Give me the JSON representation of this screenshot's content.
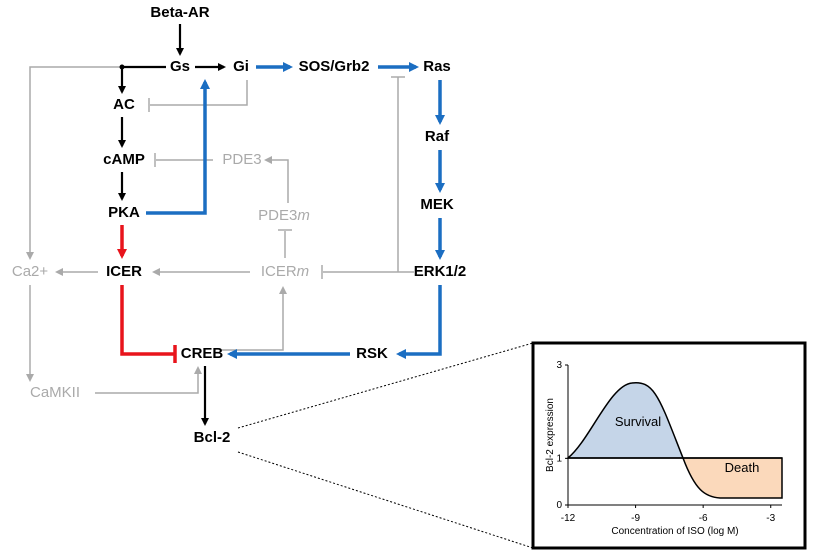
{
  "nodes": {
    "beta_ar": "Beta-AR",
    "gs": "Gs",
    "gi": "Gi",
    "sos_grb2": "SOS/Grb2",
    "ras": "Ras",
    "ac": "AC",
    "raf": "Raf",
    "camp": "cAMP",
    "pde3": "PDE3",
    "mek": "MEK",
    "pka": "PKA",
    "pde3m": {
      "base": "PDE3",
      "italic": "m"
    },
    "ca2": "Ca2+",
    "icer": "ICER",
    "icerm": {
      "base": "ICER",
      "italic": "m"
    },
    "erk": "ERK1/2",
    "creb": "CREB",
    "rsk": "RSK",
    "camkii": "CaMKII",
    "bcl2": "Bcl-2"
  },
  "inset": {
    "ylabel": "Bcl-2 expression",
    "xlabel": "Concentration of ISO (log M)",
    "xlim": [
      -12,
      -2.5
    ],
    "xticks": [
      -12,
      -9,
      -6,
      -3
    ],
    "ylim": [
      0,
      3
    ],
    "yticks": [
      0,
      1,
      3
    ],
    "regions": {
      "survival": "Survival",
      "death": "Death"
    }
  }
}
